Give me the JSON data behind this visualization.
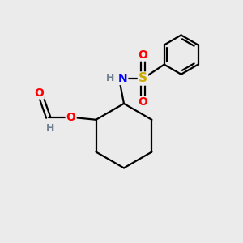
{
  "background_color": "#ebebeb",
  "bond_color": "#000000",
  "atom_colors": {
    "O": "#ff0000",
    "N": "#0000ff",
    "S": "#ccaa00",
    "H": "#708090",
    "C": "#000000"
  },
  "figsize": [
    3.0,
    3.0
  ],
  "dpi": 100
}
